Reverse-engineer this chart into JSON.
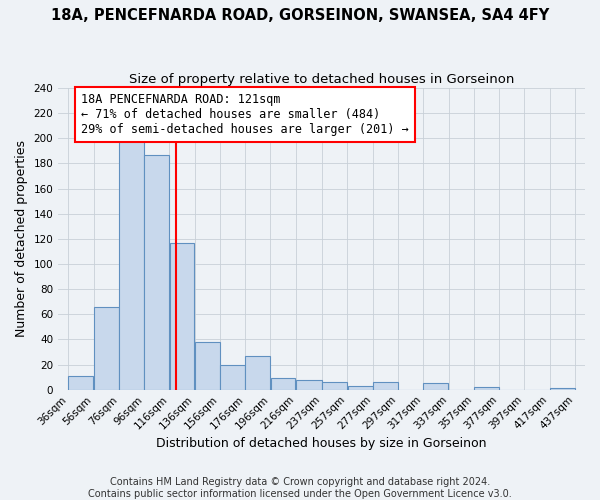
{
  "title": "18A, PENCEFNARDA ROAD, GORSEINON, SWANSEA, SA4 4FY",
  "subtitle": "Size of property relative to detached houses in Gorseinon",
  "xlabel": "Distribution of detached houses by size in Gorseinon",
  "ylabel": "Number of detached properties",
  "bar_color": "#c8d8ec",
  "bar_edge_color": "#6090c0",
  "grid_color": "#c8d0d8",
  "bg_color": "#eef2f6",
  "vline_x": 121,
  "vline_color": "red",
  "annotation_lines": [
    "18A PENCEFNARDA ROAD: 121sqm",
    "← 71% of detached houses are smaller (484)",
    "29% of semi-detached houses are larger (201) →"
  ],
  "bin_edges": [
    36,
    56,
    76,
    96,
    116,
    136,
    156,
    176,
    196,
    216,
    237,
    257,
    277,
    297,
    317,
    337,
    357,
    377,
    397,
    417,
    437
  ],
  "bin_heights": [
    11,
    66,
    199,
    187,
    117,
    38,
    20,
    27,
    9,
    8,
    6,
    3,
    6,
    0,
    5,
    0,
    2,
    0,
    0,
    1
  ],
  "ylim": [
    0,
    240
  ],
  "yticks": [
    0,
    20,
    40,
    60,
    80,
    100,
    120,
    140,
    160,
    180,
    200,
    220,
    240
  ],
  "footer_lines": [
    "Contains HM Land Registry data © Crown copyright and database right 2024.",
    "Contains public sector information licensed under the Open Government Licence v3.0."
  ],
  "footer_fontsize": 7.0,
  "title_fontsize": 10.5,
  "subtitle_fontsize": 9.5,
  "label_fontsize": 9,
  "tick_fontsize": 7.5,
  "annot_fontsize": 8.5
}
